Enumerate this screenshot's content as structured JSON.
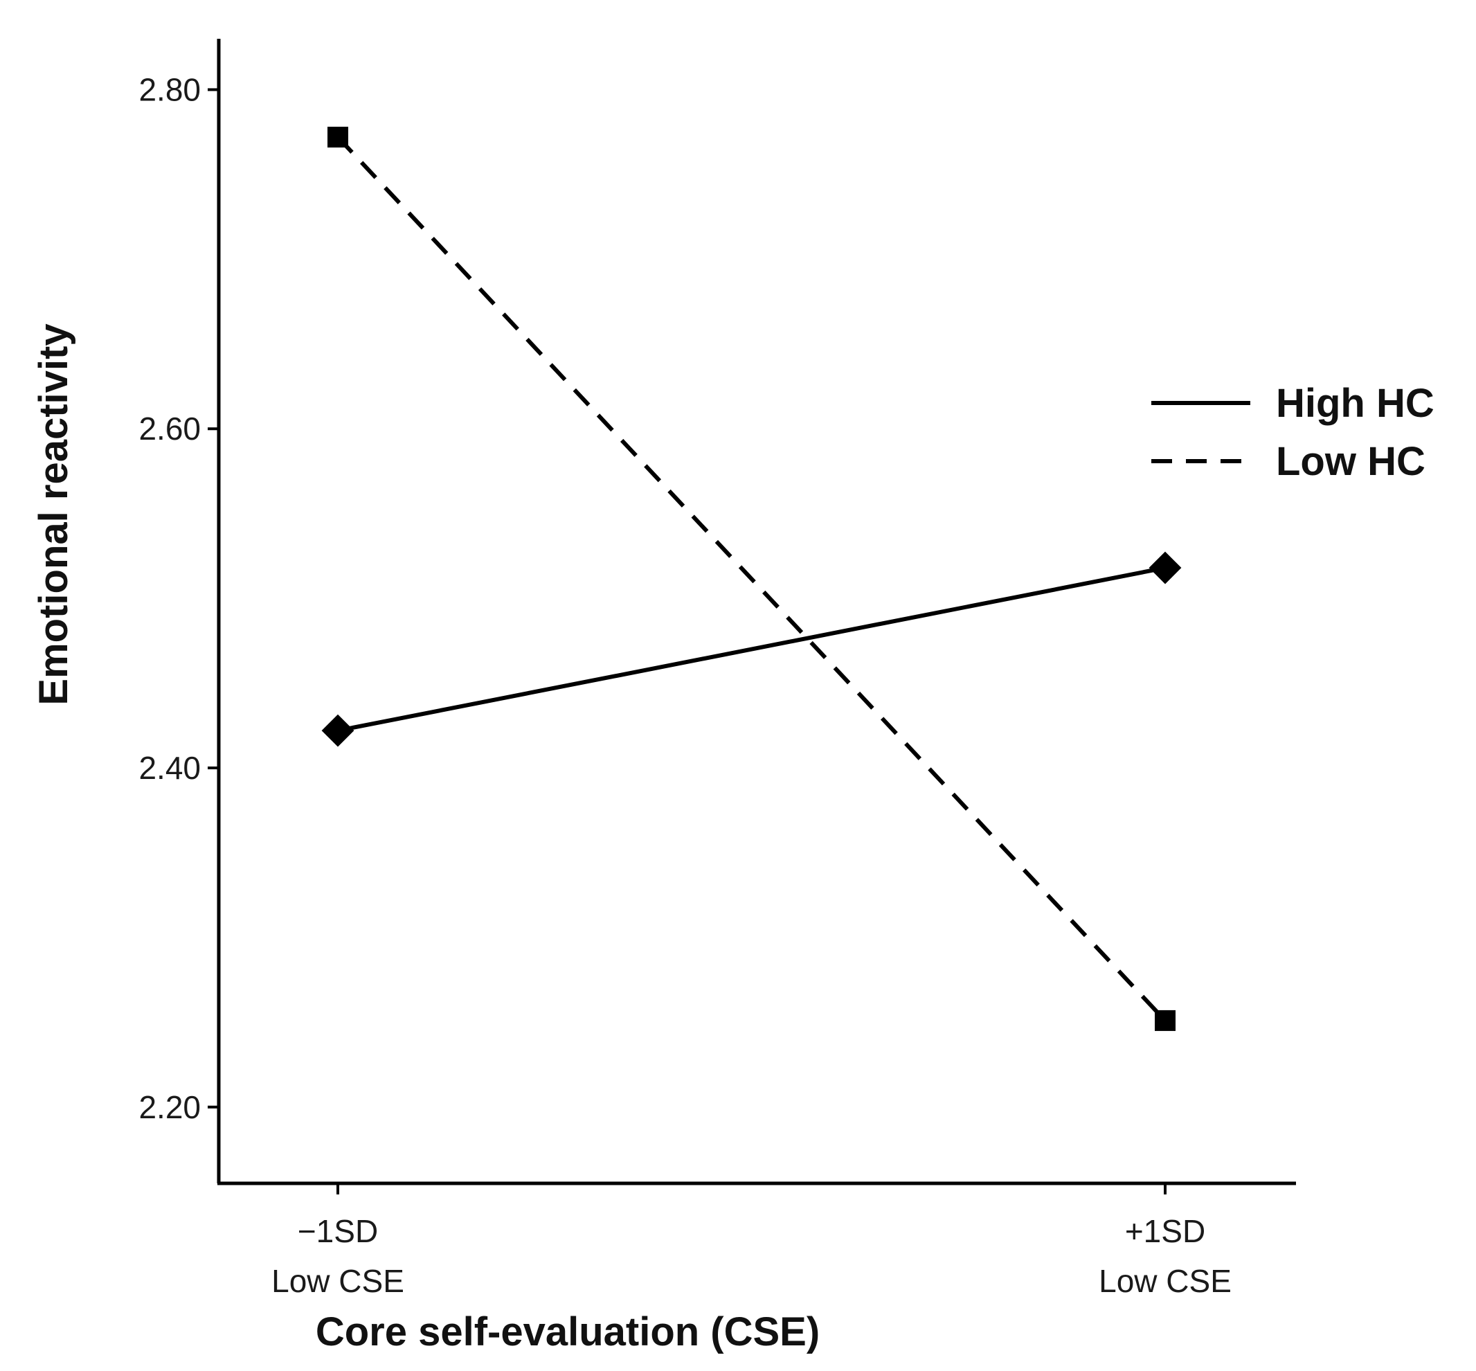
{
  "chart_data": {
    "type": "line",
    "title": "",
    "xlabel": "Core self-evaluation (CSE)",
    "ylabel": "Emotional reactivity",
    "categories": [
      {
        "line1": "−1SD",
        "line2": "Low CSE"
      },
      {
        "line1": "+1SD",
        "line2": "Low CSE"
      }
    ],
    "ylim": [
      2.155,
      2.83
    ],
    "yticks": [
      "2.20",
      "2.40",
      "2.60",
      "2.80"
    ],
    "grid": false,
    "legend_position": "right",
    "series": [
      {
        "name": "High HC",
        "values": [
          2.422,
          2.518
        ],
        "line_style": "solid",
        "marker": "diamond",
        "color": "#000000"
      },
      {
        "name": "Low HC",
        "values": [
          2.772,
          2.251
        ],
        "line_style": "dashed",
        "marker": "square",
        "color": "#000000"
      }
    ]
  }
}
